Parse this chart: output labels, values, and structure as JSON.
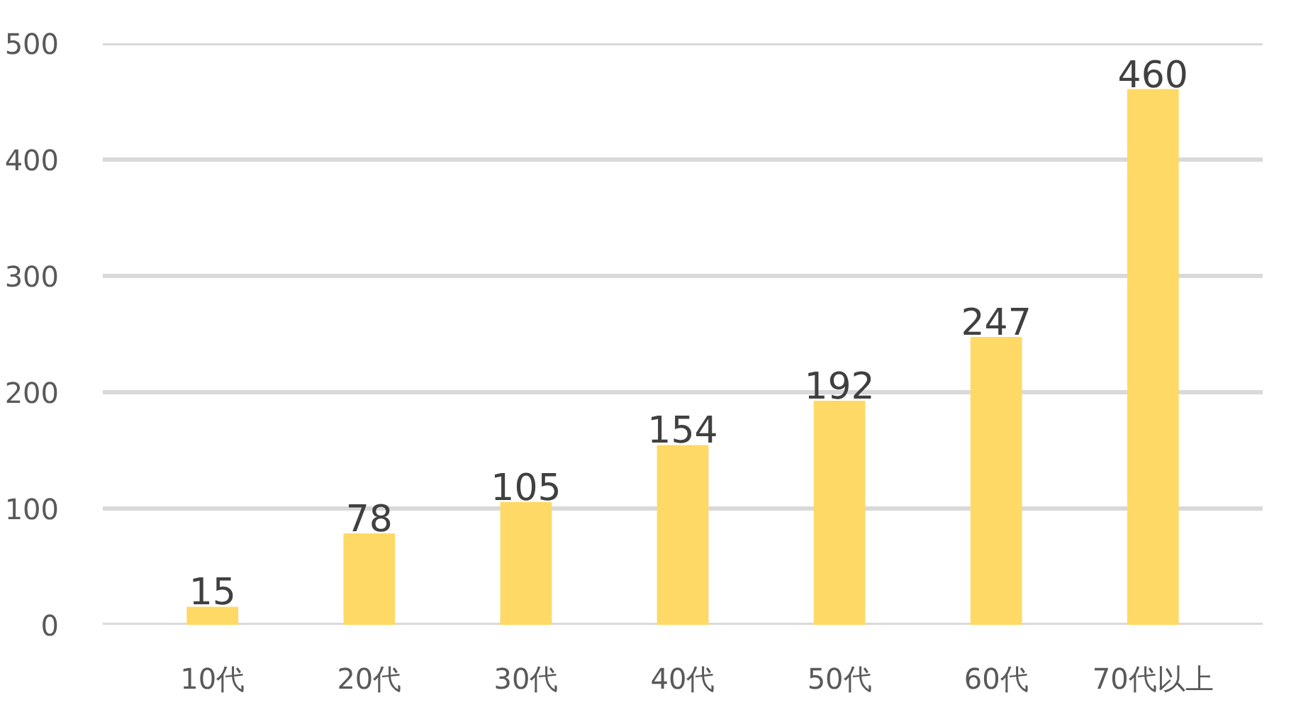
{
  "chart_data": {
    "type": "bar",
    "categories": [
      "10代",
      "20代",
      "30代",
      "40代",
      "50代",
      "60代",
      "70代以上"
    ],
    "values": [
      15,
      78,
      105,
      154,
      192,
      247,
      460
    ],
    "color": "#ffd966",
    "ylim": [
      0,
      500
    ],
    "yticks": [
      0,
      100,
      200,
      300,
      400,
      500
    ],
    "grid": "y",
    "data_labels": true
  }
}
